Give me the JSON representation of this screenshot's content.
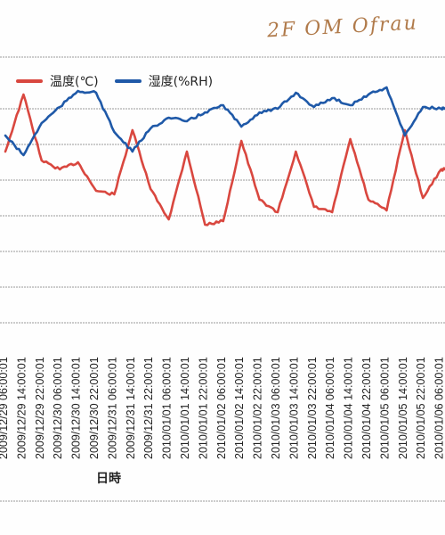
{
  "annotation": "2F OM Ofrau",
  "legend": [
    {
      "label": "温度(℃)",
      "color": "#d9473f"
    },
    {
      "label": "湿度(%RH)",
      "color": "#1f59a8"
    }
  ],
  "chart_data": {
    "type": "line",
    "xlabel": "日時",
    "x": [
      "2009/12/29 06:00:01",
      "2009/12/29 14:00:01",
      "2009/12/29 22:00:01",
      "2009/12/30 06:00:01",
      "2009/12/30 14:00:01",
      "2009/12/30 22:00:01",
      "2009/12/31 06:00:01",
      "2009/12/31 14:00:01",
      "2009/12/31 22:00:01",
      "2010/01/01 06:00:01",
      "2010/01/01 14:00:01",
      "2010/01/01 22:00:01",
      "2010/01/02 06:00:01",
      "2010/01/02 14:00:01",
      "2010/01/02 22:00:01",
      "2010/01/03 06:00:01",
      "2010/01/03 14:00:01",
      "2010/01/03 22:00:01",
      "2010/01/04 06:00:01",
      "2010/01/04 14:00:01",
      "2010/01/04 22:00:01",
      "2010/01/05 06:00:01",
      "2010/01/05 14:00:01",
      "2010/01/05 22:00:01",
      "2010/01/06 06:00:01"
    ],
    "grid": true,
    "series": [
      {
        "name": "温度(℃)",
        "color": "#d9473f",
        "values": [
          11.6,
          14.8,
          11.1,
          10.6,
          11.0,
          9.4,
          9.2,
          12.8,
          9.5,
          7.8,
          11.6,
          7.5,
          7.7,
          12.2,
          8.9,
          8.2,
          11.6,
          8.5,
          8.2,
          12.3,
          8.9,
          8.3,
          12.8,
          9.0,
          10.6
        ]
      },
      {
        "name": "湿度(%RH)",
        "color": "#1f59a8",
        "values": [
          12.5,
          11.4,
          13.2,
          14.1,
          15.0,
          14.9,
          12.7,
          11.6,
          12.9,
          13.5,
          13.3,
          13.8,
          14.2,
          13.0,
          13.8,
          14.0,
          14.9,
          14.1,
          14.6,
          14.2,
          14.8,
          15.2,
          12.5,
          14.1,
          14.0
        ]
      }
    ]
  }
}
